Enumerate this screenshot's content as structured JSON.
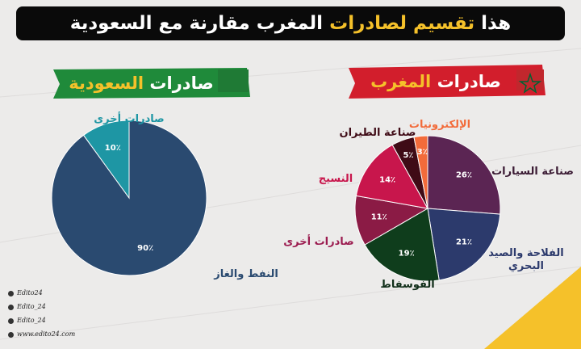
{
  "title": [
    "هذا",
    "تقسيم لصادرات",
    "المغرب مقارنة مع السعودية"
  ],
  "footer": [
    "Edito24",
    "Edito_24",
    "Edito_24",
    "www.edito24.com"
  ],
  "chart_data": [
    {
      "type": "pie",
      "title": [
        "صادرات",
        "المغرب"
      ],
      "categories": [
        "صناعة السيارات",
        "الفلاحة والصيد البحري",
        "الفوسفاط",
        "صادرات أخرى",
        "النسيج",
        "صناعة الطيران",
        "الإلكترونيات"
      ],
      "values": [
        26,
        21,
        19,
        11,
        14,
        5,
        3
      ],
      "value_labels": [
        "26٪",
        "21٪",
        "19٪",
        "11٪",
        "14٪",
        "5٪",
        "3٪"
      ],
      "colors": [
        "#5b2553",
        "#2c3a6c",
        "#0f3d1c",
        "#8b1b45",
        "#c8164c",
        "#3f0b16",
        "#f26b3a"
      ],
      "label_colors": [
        "#3a1a33",
        "#2c3a6c",
        "#0f2d18",
        "#9b1b4f",
        "#c8164c",
        "#3f0b16",
        "#f26b3a"
      ]
    },
    {
      "type": "pie",
      "title": [
        "صادرات",
        "السعودية"
      ],
      "categories": [
        "النفط والغاز",
        "صادرات أخرى"
      ],
      "values": [
        90,
        10
      ],
      "value_labels": [
        "90٪",
        "10٪"
      ],
      "colors": [
        "#2a4a70",
        "#1e96a4"
      ],
      "label_colors": [
        "#2a4a70",
        "#1e96a4"
      ]
    }
  ]
}
